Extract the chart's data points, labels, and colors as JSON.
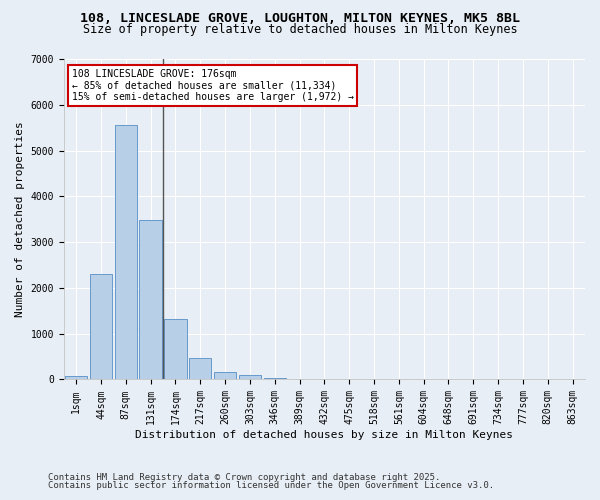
{
  "title_line1": "108, LINCESLADE GROVE, LOUGHTON, MILTON KEYNES, MK5 8BL",
  "title_line2": "Size of property relative to detached houses in Milton Keynes",
  "xlabel": "Distribution of detached houses by size in Milton Keynes",
  "ylabel": "Number of detached properties",
  "categories": [
    "1sqm",
    "44sqm",
    "87sqm",
    "131sqm",
    "174sqm",
    "217sqm",
    "260sqm",
    "303sqm",
    "346sqm",
    "389sqm",
    "432sqm",
    "475sqm",
    "518sqm",
    "561sqm",
    "604sqm",
    "648sqm",
    "691sqm",
    "734sqm",
    "777sqm",
    "820sqm",
    "863sqm"
  ],
  "values": [
    80,
    2300,
    5560,
    3480,
    1330,
    470,
    170,
    90,
    30,
    0,
    0,
    0,
    0,
    0,
    0,
    0,
    0,
    0,
    0,
    0,
    0
  ],
  "bar_color": "#b8cfe8",
  "bar_edge_color": "#6699cc",
  "vline_index": 3.5,
  "annotation_text": "108 LINCESLADE GROVE: 176sqm\n← 85% of detached houses are smaller (11,334)\n15% of semi-detached houses are larger (1,972) →",
  "annotation_box_color": "#ffffff",
  "annotation_box_edge": "#cc0000",
  "ylim": [
    0,
    7000
  ],
  "yticks": [
    0,
    1000,
    2000,
    3000,
    4000,
    5000,
    6000,
    7000
  ],
  "bg_color": "#e8eef5",
  "grid_color": "#ffffff",
  "footer_line1": "Contains HM Land Registry data © Crown copyright and database right 2025.",
  "footer_line2": "Contains public sector information licensed under the Open Government Licence v3.0.",
  "title_fontsize": 9.5,
  "subtitle_fontsize": 8.5,
  "axis_label_fontsize": 8,
  "tick_fontsize": 7,
  "footer_fontsize": 6.5,
  "annotation_fontsize": 7,
  "vline_color": "#555555"
}
